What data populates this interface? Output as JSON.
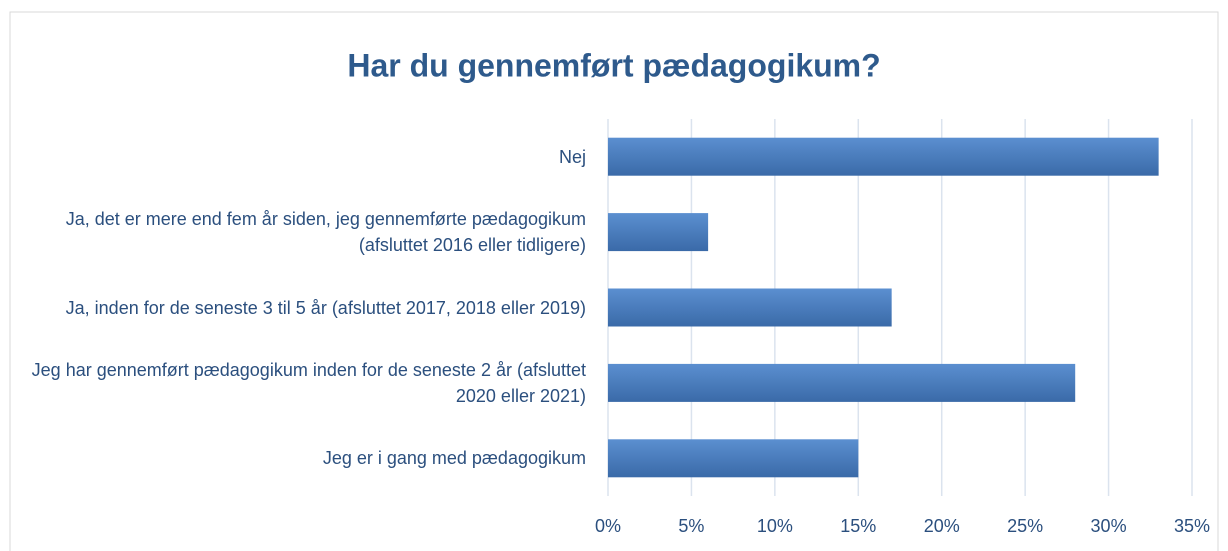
{
  "chart_data": {
    "type": "barh",
    "title": "Har du gennemført pædagogikum?",
    "categories": [
      "Nej",
      "Ja, det er mere end fem år siden, jeg gennemførte pædagogikum (afsluttet 2016 eller tidligere)",
      "Ja, inden for de seneste 3 til 5 år (afsluttet 2017, 2018 eller 2019)",
      "Jeg har gennemført pædagogikum inden for de seneste 2 år (afsluttet 2020 eller 2021)",
      "Jeg er i gang med pædagogikum"
    ],
    "values": [
      33,
      6,
      17,
      28,
      15
    ],
    "color": "#4a7ebb",
    "xlim": [
      0,
      35
    ],
    "xticks": [
      {
        "value": 0,
        "label": "0%"
      },
      {
        "value": 5,
        "label": "5%"
      },
      {
        "value": 10,
        "label": "10%"
      },
      {
        "value": 15,
        "label": "15%"
      },
      {
        "value": 20,
        "label": "20%"
      },
      {
        "value": 25,
        "label": "25%"
      },
      {
        "value": 30,
        "label": "30%"
      },
      {
        "value": 35,
        "label": "35%"
      }
    ],
    "grid": true
  }
}
